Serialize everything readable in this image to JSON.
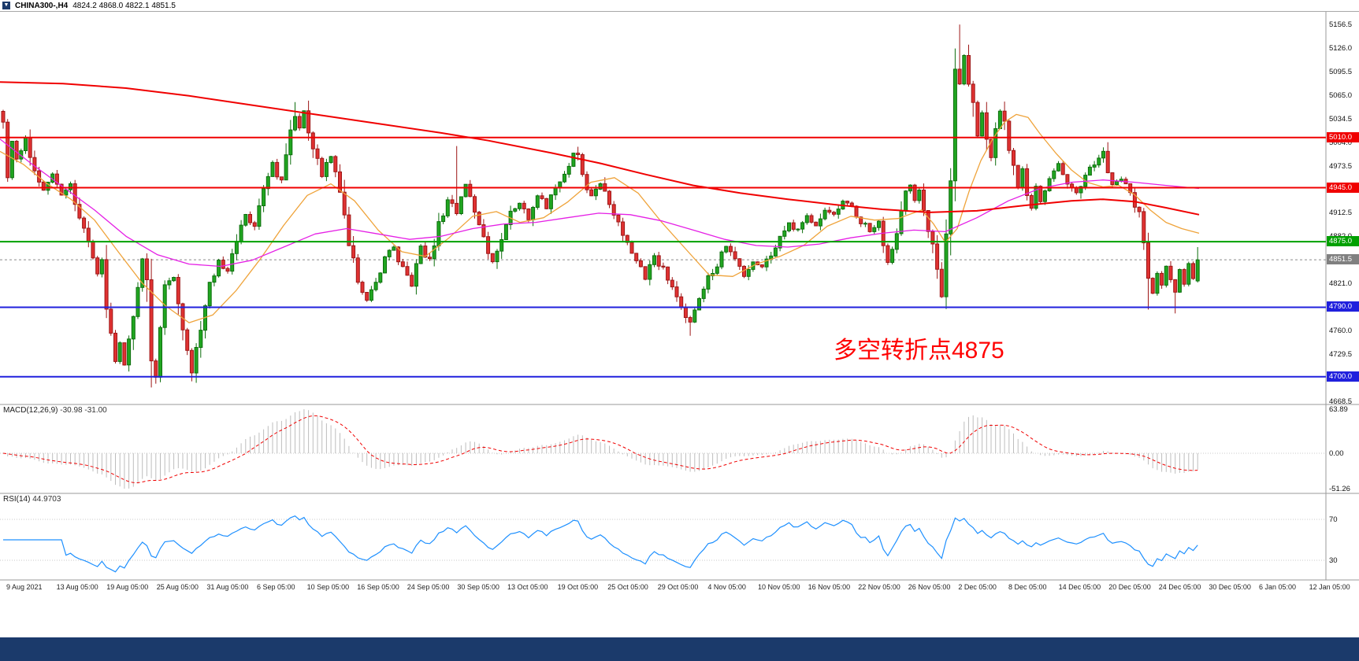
{
  "window": {
    "symbol_period": "CHINA300-,H4",
    "ohlc": "4824.2 4868.0 4822.1 4851.5"
  },
  "annotation": {
    "text": "多空转折点4875",
    "color": "#ff0000"
  },
  "price_axis": {
    "ticks": [
      "5156.5",
      "5126.0",
      "5095.5",
      "5065.0",
      "5034.5",
      "5004.0",
      "4973.5",
      "4943.0",
      "4912.5",
      "4882.0",
      "4851.5",
      "4821.0",
      "4790.5",
      "4760.0",
      "4729.5",
      "4699.0",
      "4668.5"
    ]
  },
  "levels": [
    {
      "label": "5010.0",
      "price": 5010.0,
      "color": "#f00000",
      "style": "solid"
    },
    {
      "label": "4945.0",
      "price": 4945.0,
      "color": "#f00000",
      "style": "solid"
    },
    {
      "label": "4875.0",
      "price": 4875.0,
      "color": "#00a000",
      "style": "solid"
    },
    {
      "label": "4851.5",
      "price": 4851.5,
      "color": "#808080",
      "style": "dashed",
      "role": "current-price"
    },
    {
      "label": "4790.0",
      "price": 4790.0,
      "color": "#2020dd",
      "style": "solid"
    },
    {
      "label": "4700.0",
      "price": 4700.0,
      "color": "#2020dd",
      "style": "solid"
    }
  ],
  "macd_panel": {
    "label": "MACD(12,26,9)",
    "values": "-30.98 -31.00",
    "scale": [
      "63.89",
      "0.00",
      "-51.26"
    ]
  },
  "rsi_panel": {
    "label": "RSI(14)",
    "value": "44.9703",
    "scale": [
      "70",
      "30"
    ]
  },
  "time_axis": {
    "labels": [
      "9 Aug 2021",
      "13 Aug 05:00",
      "19 Aug 05:00",
      "25 Aug 05:00",
      "31 Aug 05:00",
      "6 Sep 05:00",
      "10 Sep 05:00",
      "16 Sep 05:00",
      "24 Sep 05:00",
      "30 Sep 05:00",
      "13 Oct 05:00",
      "19 Oct 05:00",
      "25 Oct 05:00",
      "29 Oct 05:00",
      "4 Nov 05:00",
      "10 Nov 05:00",
      "16 Nov 05:00",
      "22 Nov 05:00",
      "26 Nov 05:00",
      "2 Dec 05:00",
      "8 Dec 05:00",
      "14 Dec 05:00",
      "20 Dec 05:00",
      "24 Dec 05:00",
      "30 Dec 05:00",
      "6 Jan 05:00",
      "12 Jan 05:00"
    ]
  },
  "chart_data": {
    "type": "candlestick",
    "title": "CHINA300-,H4",
    "symbol": "CHINA300-",
    "timeframe": "H4",
    "current_bar": {
      "open": 4824.2,
      "high": 4868.0,
      "low": 4822.1,
      "close": 4851.5
    },
    "price_range": [
      4664,
      5174
    ],
    "bar_count": 267,
    "up_color": "#21a621",
    "down_color": "#e03232",
    "price_anchors": [
      [
        0,
        5030
      ],
      [
        1,
        4962
      ],
      [
        2,
        5005
      ],
      [
        3,
        4980
      ],
      [
        5,
        5008
      ],
      [
        7,
        4965
      ],
      [
        9,
        4940
      ],
      [
        11,
        4962
      ],
      [
        13,
        4935
      ],
      [
        15,
        4950
      ],
      [
        17,
        4905
      ],
      [
        19,
        4880
      ],
      [
        21,
        4835
      ],
      [
        22,
        4852
      ],
      [
        23,
        4790
      ],
      [
        24,
        4755
      ],
      [
        25,
        4722
      ],
      [
        26,
        4742
      ],
      [
        27,
        4716
      ],
      [
        29,
        4775
      ],
      [
        31,
        4855
      ],
      [
        32,
        4832
      ],
      [
        33,
        4722
      ],
      [
        34,
        4698
      ],
      [
        35,
        4762
      ],
      [
        36,
        4815
      ],
      [
        38,
        4832
      ],
      [
        40,
        4766
      ],
      [
        41,
        4732
      ],
      [
        42,
        4706
      ],
      [
        44,
        4765
      ],
      [
        46,
        4820
      ],
      [
        48,
        4850
      ],
      [
        50,
        4836
      ],
      [
        52,
        4880
      ],
      [
        54,
        4910
      ],
      [
        56,
        4892
      ],
      [
        58,
        4940
      ],
      [
        60,
        4975
      ],
      [
        62,
        4952
      ],
      [
        63,
        4990
      ],
      [
        65,
        5038
      ],
      [
        66,
        5022
      ],
      [
        67,
        5046
      ],
      [
        69,
        4996
      ],
      [
        71,
        4962
      ],
      [
        73,
        4986
      ],
      [
        75,
        4945
      ],
      [
        77,
        4876
      ],
      [
        79,
        4826
      ],
      [
        81,
        4800
      ],
      [
        83,
        4822
      ],
      [
        85,
        4856
      ],
      [
        87,
        4866
      ],
      [
        89,
        4840
      ],
      [
        91,
        4820
      ],
      [
        93,
        4866
      ],
      [
        95,
        4850
      ],
      [
        97,
        4896
      ],
      [
        99,
        4930
      ],
      [
        101,
        4912
      ],
      [
        103,
        4950
      ],
      [
        105,
        4916
      ],
      [
        107,
        4880
      ],
      [
        109,
        4850
      ],
      [
        111,
        4880
      ],
      [
        113,
        4916
      ],
      [
        115,
        4926
      ],
      [
        117,
        4906
      ],
      [
        119,
        4936
      ],
      [
        121,
        4920
      ],
      [
        123,
        4946
      ],
      [
        125,
        4966
      ],
      [
        127,
        4986
      ],
      [
        128,
        4992
      ],
      [
        129,
        4960
      ],
      [
        131,
        4932
      ],
      [
        133,
        4952
      ],
      [
        135,
        4920
      ],
      [
        137,
        4900
      ],
      [
        139,
        4870
      ],
      [
        141,
        4850
      ],
      [
        143,
        4828
      ],
      [
        145,
        4856
      ],
      [
        147,
        4838
      ],
      [
        149,
        4818
      ],
      [
        151,
        4792
      ],
      [
        153,
        4768
      ],
      [
        155,
        4806
      ],
      [
        157,
        4828
      ],
      [
        159,
        4846
      ],
      [
        161,
        4868
      ],
      [
        163,
        4852
      ],
      [
        165,
        4832
      ],
      [
        167,
        4850
      ],
      [
        169,
        4842
      ],
      [
        171,
        4858
      ],
      [
        173,
        4878
      ],
      [
        175,
        4898
      ],
      [
        177,
        4890
      ],
      [
        179,
        4908
      ],
      [
        181,
        4898
      ],
      [
        183,
        4918
      ],
      [
        185,
        4908
      ],
      [
        187,
        4928
      ],
      [
        189,
        4918
      ],
      [
        191,
        4902
      ],
      [
        193,
        4890
      ],
      [
        195,
        4900
      ],
      [
        196,
        4872
      ],
      [
        197,
        4846
      ],
      [
        198,
        4866
      ],
      [
        199,
        4892
      ],
      [
        200,
        4916
      ],
      [
        201,
        4938
      ],
      [
        202,
        4948
      ],
      [
        203,
        4930
      ],
      [
        204,
        4944
      ],
      [
        205,
        4920
      ],
      [
        206,
        4890
      ],
      [
        207,
        4868
      ],
      [
        208,
        4842
      ],
      [
        209,
        4808
      ],
      [
        210,
        4885
      ],
      [
        211,
        4958
      ],
      [
        212,
        5095
      ],
      [
        213,
        5082
      ],
      [
        214,
        5116
      ],
      [
        215,
        5086
      ],
      [
        216,
        5050
      ],
      [
        217,
        5012
      ],
      [
        218,
        5042
      ],
      [
        219,
        5006
      ],
      [
        220,
        4986
      ],
      [
        221,
        5016
      ],
      [
        222,
        5042
      ],
      [
        223,
        5026
      ],
      [
        224,
        4996
      ],
      [
        225,
        4970
      ],
      [
        226,
        4946
      ],
      [
        227,
        4970
      ],
      [
        228,
        4940
      ],
      [
        229,
        4920
      ],
      [
        230,
        4946
      ],
      [
        231,
        4926
      ],
      [
        233,
        4956
      ],
      [
        235,
        4976
      ],
      [
        237,
        4950
      ],
      [
        239,
        4936
      ],
      [
        241,
        4960
      ],
      [
        243,
        4976
      ],
      [
        245,
        4990
      ],
      [
        246,
        4966
      ],
      [
        247,
        4946
      ],
      [
        249,
        4958
      ],
      [
        251,
        4936
      ],
      [
        253,
        4910
      ],
      [
        254,
        4870
      ],
      [
        255,
        4832
      ],
      [
        256,
        4810
      ],
      [
        257,
        4836
      ],
      [
        258,
        4820
      ],
      [
        259,
        4846
      ],
      [
        260,
        4828
      ],
      [
        261,
        4812
      ],
      [
        262,
        4836
      ],
      [
        263,
        4822
      ],
      [
        264,
        4846
      ],
      [
        265,
        4826
      ],
      [
        266,
        4851.5
      ]
    ],
    "wick_events": [
      {
        "i": 0,
        "high": 5046
      },
      {
        "i": 33,
        "low": 4686
      },
      {
        "i": 42,
        "low": 4694
      },
      {
        "i": 65,
        "high": 5056
      },
      {
        "i": 101,
        "high": 4999
      },
      {
        "i": 128,
        "high": 4998
      },
      {
        "i": 153,
        "low": 4753
      },
      {
        "i": 213,
        "high": 5156.5
      },
      {
        "i": 255,
        "low": 4787
      },
      {
        "i": 261,
        "low": 4782
      }
    ],
    "moving_averages": [
      {
        "name": "slow",
        "color": "#f00000",
        "width": 2,
        "points": [
          [
            0,
            5082
          ],
          [
            80,
            5080
          ],
          [
            160,
            5074
          ],
          [
            240,
            5064
          ],
          [
            320,
            5052
          ],
          [
            400,
            5040
          ],
          [
            480,
            5028
          ],
          [
            560,
            5016
          ],
          [
            620,
            5006
          ],
          [
            700,
            4990
          ],
          [
            760,
            4977
          ],
          [
            820,
            4962
          ],
          [
            880,
            4948
          ],
          [
            940,
            4938
          ],
          [
            1000,
            4930
          ],
          [
            1060,
            4923
          ],
          [
            1120,
            4917
          ],
          [
            1180,
            4913
          ],
          [
            1240,
            4915
          ],
          [
            1300,
            4922
          ],
          [
            1360,
            4928
          ],
          [
            1400,
            4930
          ],
          [
            1440,
            4927
          ],
          [
            1480,
            4919
          ],
          [
            1522,
            4910
          ]
        ]
      },
      {
        "name": "medium",
        "color": "#e520e5",
        "width": 1.3,
        "points": [
          [
            0,
            5008
          ],
          [
            40,
            4976
          ],
          [
            80,
            4946
          ],
          [
            120,
            4916
          ],
          [
            160,
            4882
          ],
          [
            200,
            4858
          ],
          [
            240,
            4846
          ],
          [
            280,
            4843
          ],
          [
            320,
            4851
          ],
          [
            360,
            4868
          ],
          [
            400,
            4885
          ],
          [
            440,
            4892
          ],
          [
            480,
            4885
          ],
          [
            520,
            4878
          ],
          [
            560,
            4882
          ],
          [
            600,
            4892
          ],
          [
            640,
            4898
          ],
          [
            680,
            4900
          ],
          [
            720,
            4906
          ],
          [
            760,
            4912
          ],
          [
            800,
            4910
          ],
          [
            840,
            4902
          ],
          [
            880,
            4890
          ],
          [
            920,
            4878
          ],
          [
            960,
            4870
          ],
          [
            1000,
            4868
          ],
          [
            1040,
            4872
          ],
          [
            1080,
            4880
          ],
          [
            1120,
            4886
          ],
          [
            1160,
            4890
          ],
          [
            1200,
            4888
          ],
          [
            1240,
            4906
          ],
          [
            1280,
            4928
          ],
          [
            1320,
            4944
          ],
          [
            1360,
            4952
          ],
          [
            1400,
            4955
          ],
          [
            1440,
            4952
          ],
          [
            1480,
            4948
          ],
          [
            1522,
            4944
          ]
        ]
      },
      {
        "name": "fast",
        "color": "#efa33a",
        "width": 1.3,
        "points": [
          [
            0,
            4992
          ],
          [
            30,
            4975
          ],
          [
            60,
            4950
          ],
          [
            90,
            4930
          ],
          [
            120,
            4903
          ],
          [
            150,
            4862
          ],
          [
            180,
            4822
          ],
          [
            210,
            4792
          ],
          [
            240,
            4770
          ],
          [
            270,
            4780
          ],
          [
            300,
            4812
          ],
          [
            330,
            4852
          ],
          [
            360,
            4896
          ],
          [
            390,
            4935
          ],
          [
            420,
            4950
          ],
          [
            450,
            4928
          ],
          [
            480,
            4890
          ],
          [
            510,
            4862
          ],
          [
            540,
            4856
          ],
          [
            570,
            4880
          ],
          [
            600,
            4908
          ],
          [
            630,
            4914
          ],
          [
            660,
            4900
          ],
          [
            690,
            4906
          ],
          [
            720,
            4926
          ],
          [
            750,
            4952
          ],
          [
            780,
            4958
          ],
          [
            810,
            4938
          ],
          [
            840,
            4900
          ],
          [
            870,
            4866
          ],
          [
            900,
            4832
          ],
          [
            930,
            4830
          ],
          [
            960,
            4846
          ],
          [
            990,
            4856
          ],
          [
            1020,
            4870
          ],
          [
            1050,
            4895
          ],
          [
            1080,
            4908
          ],
          [
            1110,
            4903
          ],
          [
            1140,
            4905
          ],
          [
            1170,
            4916
          ],
          [
            1185,
            4898
          ],
          [
            1200,
            4874
          ],
          [
            1215,
            4892
          ],
          [
            1230,
            4940
          ],
          [
            1245,
            4980
          ],
          [
            1260,
            5008
          ],
          [
            1275,
            5030
          ],
          [
            1290,
            5040
          ],
          [
            1305,
            5036
          ],
          [
            1320,
            5015
          ],
          [
            1340,
            4990
          ],
          [
            1360,
            4968
          ],
          [
            1380,
            4952
          ],
          [
            1400,
            4946
          ],
          [
            1420,
            4948
          ],
          [
            1440,
            4936
          ],
          [
            1460,
            4916
          ],
          [
            1480,
            4900
          ],
          [
            1500,
            4892
          ],
          [
            1522,
            4886
          ]
        ]
      }
    ],
    "macd": {
      "fast": 12,
      "slow": 26,
      "signal": 9,
      "range": [
        -51.26,
        63.89
      ],
      "last_values": [
        -30.98,
        -31.0
      ],
      "histogram_color": "#bdbdbd",
      "signal_color": "#f00000"
    },
    "rsi": {
      "period": 14,
      "color": "#1e90ff",
      "levels": [
        70,
        30
      ],
      "last": 44.9703
    }
  }
}
